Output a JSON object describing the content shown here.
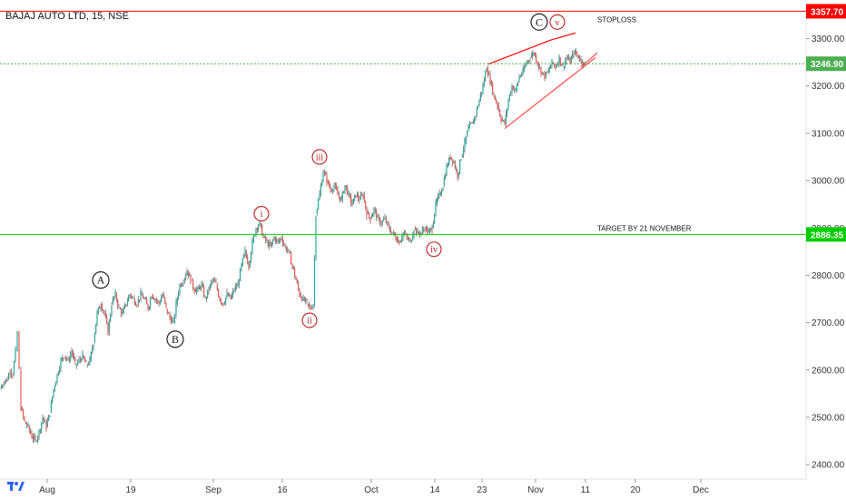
{
  "chart_data": {
    "type": "candlestick",
    "title": "BAJAJ AUTO LTD, 15, NSE",
    "y_axis": {
      "range": [
        2385,
        3370
      ],
      "tick_labels": [
        "2400.00",
        "2500.00",
        "2600.00",
        "2700.00",
        "2800.00",
        "2900.00",
        "3000.00",
        "3100.00",
        "3200.00",
        "3300.00"
      ]
    },
    "x_axis": {
      "tick_labels": [
        "Aug",
        "19",
        "Sep",
        "16",
        "Oct",
        "14",
        "23",
        "Nov",
        "11",
        "20",
        "Dec"
      ]
    },
    "grid": false,
    "horizontal_lines": [
      {
        "name": "stoploss",
        "value": 3357.7,
        "label": "3357.70",
        "color": "#ff0000",
        "annotation": "STOPLOSS"
      },
      {
        "name": "current",
        "value": 3246.9,
        "label": "3246.90",
        "color": "#4caf50",
        "style": "dotted"
      },
      {
        "name": "target",
        "value": 2886.35,
        "label": "2886.35",
        "color": "#00cc00",
        "annotation": "TARGET BY 21 NOVEMBER"
      }
    ],
    "wave_labels": [
      {
        "label": "A",
        "value": 2790,
        "style": "large"
      },
      {
        "label": "B",
        "value": 2665,
        "style": "large"
      },
      {
        "label": "i",
        "value": 2930,
        "style": "red"
      },
      {
        "label": "ii",
        "value": 2705,
        "style": "red"
      },
      {
        "label": "iii",
        "value": 3050,
        "style": "red"
      },
      {
        "label": "iv",
        "value": 2855,
        "style": "red"
      },
      {
        "label": "C",
        "value": 3335,
        "style": "large"
      },
      {
        "label": "v",
        "value": 3335,
        "style": "red"
      }
    ],
    "colors": {
      "up": "#26a69a",
      "down": "#ef5350",
      "wick": "#5d5d5d",
      "axis_text": "#333333"
    },
    "price_path": [
      [
        0,
        2560
      ],
      [
        4,
        2575
      ],
      [
        8,
        2580
      ],
      [
        11,
        2600
      ],
      [
        14,
        2590
      ],
      [
        17,
        2640
      ],
      [
        19,
        2680
      ],
      [
        21,
        2600
      ],
      [
        23,
        2520
      ],
      [
        27,
        2490
      ],
      [
        31,
        2480
      ],
      [
        35,
        2460
      ],
      [
        39,
        2450
      ],
      [
        43,
        2470
      ],
      [
        47,
        2500
      ],
      [
        51,
        2480
      ],
      [
        55,
        2510
      ],
      [
        59,
        2560
      ],
      [
        63,
        2590
      ],
      [
        67,
        2620
      ],
      [
        71,
        2630
      ],
      [
        75,
        2620
      ],
      [
        79,
        2640
      ],
      [
        83,
        2610
      ],
      [
        87,
        2620
      ],
      [
        91,
        2630
      ],
      [
        95,
        2610
      ],
      [
        99,
        2620
      ],
      [
        103,
        2660
      ],
      [
        107,
        2720
      ],
      [
        111,
        2740
      ],
      [
        115,
        2720
      ],
      [
        119,
        2680
      ],
      [
        123,
        2740
      ],
      [
        127,
        2760
      ],
      [
        131,
        2730
      ],
      [
        135,
        2720
      ],
      [
        139,
        2740
      ],
      [
        143,
        2760
      ],
      [
        147,
        2750
      ],
      [
        151,
        2740
      ],
      [
        155,
        2760
      ],
      [
        159,
        2750
      ],
      [
        163,
        2730
      ],
      [
        167,
        2760
      ],
      [
        171,
        2750
      ],
      [
        175,
        2740
      ],
      [
        179,
        2760
      ],
      [
        183,
        2730
      ],
      [
        187,
        2710
      ],
      [
        191,
        2700
      ],
      [
        194,
        2740
      ],
      [
        198,
        2780
      ],
      [
        202,
        2790
      ],
      [
        206,
        2810
      ],
      [
        210,
        2790
      ],
      [
        214,
        2770
      ],
      [
        218,
        2770
      ],
      [
        222,
        2780
      ],
      [
        226,
        2750
      ],
      [
        230,
        2770
      ],
      [
        234,
        2790
      ],
      [
        238,
        2780
      ],
      [
        242,
        2750
      ],
      [
        246,
        2740
      ],
      [
        250,
        2760
      ],
      [
        254,
        2750
      ],
      [
        258,
        2770
      ],
      [
        262,
        2780
      ],
      [
        266,
        2820
      ],
      [
        270,
        2850
      ],
      [
        274,
        2820
      ],
      [
        278,
        2870
      ],
      [
        282,
        2900
      ],
      [
        286,
        2910
      ],
      [
        290,
        2880
      ],
      [
        294,
        2870
      ],
      [
        298,
        2860
      ],
      [
        302,
        2880
      ],
      [
        306,
        2870
      ],
      [
        310,
        2880
      ],
      [
        314,
        2860
      ],
      [
        318,
        2850
      ],
      [
        322,
        2820
      ],
      [
        326,
        2790
      ],
      [
        330,
        2760
      ],
      [
        334,
        2750
      ],
      [
        338,
        2740
      ],
      [
        342,
        2730
      ],
      [
        345,
        2740
      ],
      [
        348,
        2930
      ],
      [
        352,
        2970
      ],
      [
        356,
        3020
      ],
      [
        360,
        3000
      ],
      [
        364,
        2980
      ],
      [
        368,
        2990
      ],
      [
        372,
        2970
      ],
      [
        376,
        2960
      ],
      [
        380,
        2990
      ],
      [
        384,
        2970
      ],
      [
        388,
        2950
      ],
      [
        392,
        2970
      ],
      [
        396,
        2960
      ],
      [
        400,
        2970
      ],
      [
        404,
        2930
      ],
      [
        408,
        2920
      ],
      [
        412,
        2940
      ],
      [
        416,
        2920
      ],
      [
        420,
        2910
      ],
      [
        424,
        2920
      ],
      [
        428,
        2900
      ],
      [
        432,
        2890
      ],
      [
        436,
        2880
      ],
      [
        440,
        2870
      ],
      [
        444,
        2890
      ],
      [
        448,
        2880
      ],
      [
        452,
        2870
      ],
      [
        456,
        2900
      ],
      [
        460,
        2890
      ],
      [
        464,
        2890
      ],
      [
        468,
        2900
      ],
      [
        472,
        2890
      ],
      [
        476,
        2900
      ],
      [
        480,
        2950
      ],
      [
        484,
        2970
      ],
      [
        488,
        2990
      ],
      [
        492,
        3030
      ],
      [
        496,
        3050
      ],
      [
        500,
        3040
      ],
      [
        504,
        3010
      ],
      [
        508,
        3050
      ],
      [
        512,
        3080
      ],
      [
        516,
        3110
      ],
      [
        520,
        3120
      ],
      [
        524,
        3140
      ],
      [
        528,
        3170
      ],
      [
        532,
        3200
      ],
      [
        536,
        3240
      ],
      [
        540,
        3210
      ],
      [
        544,
        3180
      ],
      [
        548,
        3160
      ],
      [
        552,
        3130
      ],
      [
        556,
        3120
      ],
      [
        560,
        3170
      ],
      [
        564,
        3200
      ],
      [
        568,
        3190
      ],
      [
        572,
        3220
      ],
      [
        576,
        3230
      ],
      [
        580,
        3250
      ],
      [
        584,
        3260
      ],
      [
        588,
        3270
      ],
      [
        592,
        3250
      ],
      [
        596,
        3230
      ],
      [
        600,
        3220
      ],
      [
        604,
        3230
      ],
      [
        608,
        3250
      ],
      [
        612,
        3240
      ],
      [
        616,
        3260
      ],
      [
        620,
        3240
      ],
      [
        624,
        3260
      ],
      [
        628,
        3250
      ],
      [
        632,
        3270
      ],
      [
        636,
        3265
      ],
      [
        640,
        3255
      ],
      [
        644,
        3247
      ]
    ],
    "trendlines": [
      {
        "from": [
          538,
          3246
        ],
        "to": [
          607,
          3297
        ],
        "color": "#ff0000"
      },
      {
        "from": [
          607,
          3297
        ],
        "to": [
          634,
          3312
        ],
        "color": "#ff0000"
      },
      {
        "from": [
          556,
          3110
        ],
        "to": [
          656,
          3260
        ],
        "color": "#ff4d4d"
      },
      {
        "from": [
          640,
          3240
        ],
        "to": [
          658,
          3270
        ],
        "color": "#ff4d4d"
      }
    ]
  }
}
